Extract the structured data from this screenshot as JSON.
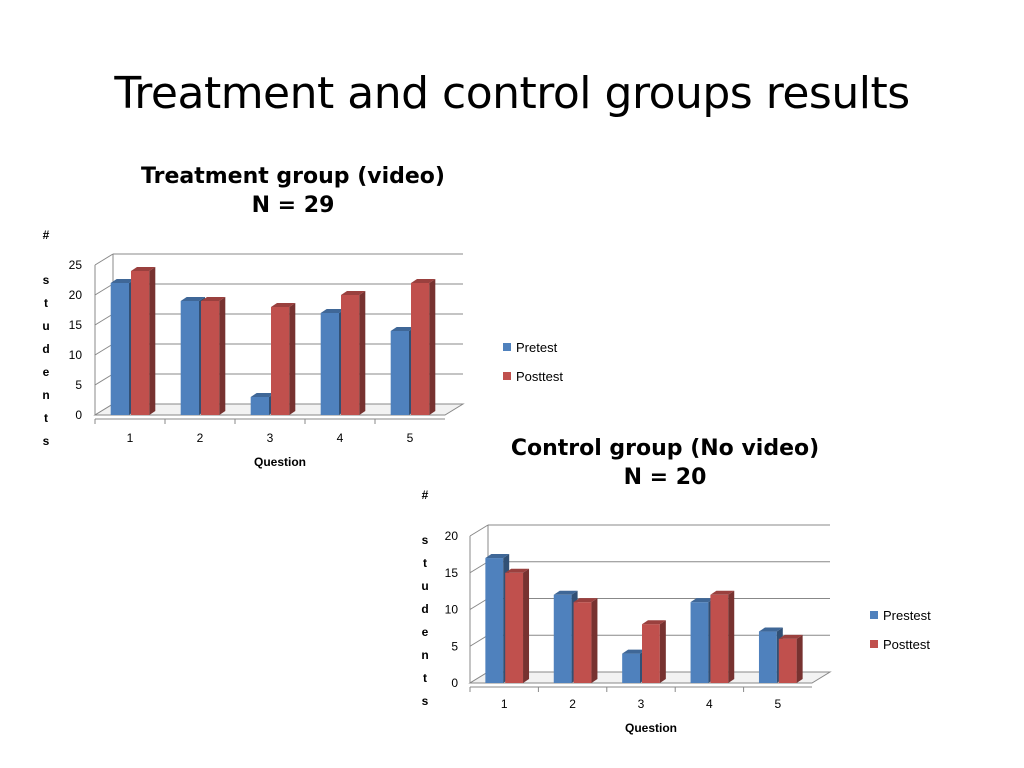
{
  "slide": {
    "title": "Treatment and control groups results"
  },
  "chart_data": [
    {
      "type": "bar",
      "title": "Treatment group (video)",
      "subtitle": "N = 29",
      "xlabel": "Question",
      "ylabel": "# students",
      "categories": [
        "1",
        "2",
        "3",
        "4",
        "5"
      ],
      "ylim": [
        0,
        25
      ],
      "yticks": [
        0,
        5,
        10,
        15,
        20,
        25
      ],
      "grid": true,
      "legend_position": "right",
      "series": [
        {
          "name": "Pretest",
          "values": [
            22,
            19,
            3,
            17,
            14
          ],
          "color": "#4F81BD"
        },
        {
          "name": "Posttest",
          "values": [
            24,
            19,
            18,
            20,
            22
          ],
          "color": "#C0504D"
        }
      ]
    },
    {
      "type": "bar",
      "title": "Control group (No video)",
      "subtitle": "N = 20",
      "xlabel": "Question",
      "ylabel": "# students",
      "categories": [
        "1",
        "2",
        "3",
        "4",
        "5"
      ],
      "ylim": [
        0,
        20
      ],
      "yticks": [
        0,
        5,
        10,
        15,
        20
      ],
      "grid": true,
      "legend_position": "right",
      "series": [
        {
          "name": "Prestest",
          "values": [
            17,
            12,
            4,
            11,
            7
          ],
          "color": "#4F81BD"
        },
        {
          "name": "Posttest",
          "values": [
            15,
            11,
            8,
            12,
            6
          ],
          "color": "#C0504D"
        }
      ]
    }
  ]
}
